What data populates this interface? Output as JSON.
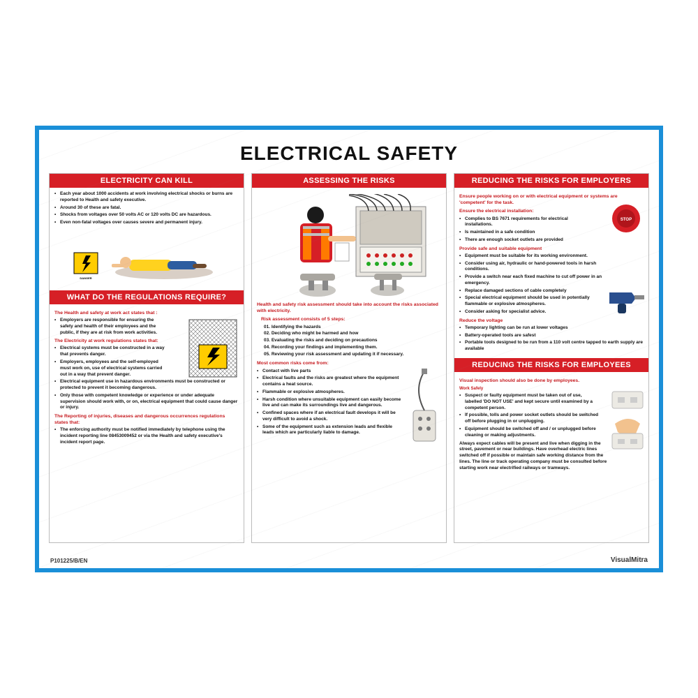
{
  "title": "ELECTRICAL SAFETY",
  "border_color": "#1a8fd8",
  "header_bg": "#d61f26",
  "accent_text": "#c61a1f",
  "footer": {
    "code": "P101225/B/EN",
    "brand": "VisualMitra"
  },
  "col1": {
    "s1": {
      "title": "ELECTRICITY CAN KILL",
      "bullets": [
        "Each year about 1000 accidents at work involving electrical shocks or burns are reported to Health and safety executive.",
        "Around 30 of these are fatal.",
        "Shocks from voltages over 50 volts AC or 120 volts DC are hazardous.",
        "Even non-fatal voltages over causes severe and permanent injury."
      ]
    },
    "s2": {
      "title": "WHAT DO THE REGULATIONS REQUIRE?",
      "sub1": "The Health and safety at work act states that :",
      "b1": [
        "Employers are responsible for ensuring the safety and health of their employees and the public, if they are at risk from work activities."
      ],
      "sub2": "The Electricity at work regulations states that:",
      "b2": [
        "Electrical systems must be constructed in a way that prevents danger.",
        "Employers, employees and the self-employed must work on, use of electrical systems carried out in a way that prevent danger.",
        "Electrical equipment use in hazardous environments must be constructed or protected to prevent it becoming dangerous.",
        "Only those with competent knowledge or experience or under adequate supervision should work with, or on, electrical equipment that could cause danger or injury."
      ],
      "sub3": "The Reporting of injuries, diseases and dangerous occurrences regulations states that:",
      "b3": [
        "The enforcing authority must be notified immediately by telephone using the incident reporting line 08453009452 or via the Health and safety executive's incident report page."
      ]
    }
  },
  "col2": {
    "title": "ASSESSING THE RISKS",
    "intro": "Health and safety risk assessment should take into account the risks associated with electricity.",
    "sub1": "Risk assessment consists of 5 steps:",
    "steps": [
      "01. Identifying the hazards",
      "02. Deciding who might be harmed and how",
      "03. Evaluating the risks and deciding on precautions",
      "04. Recording your findings and implementing them.",
      "05. Reviewing your risk assessment and updating it if necessary."
    ],
    "sub2": "Most common risks come from:",
    "risks": [
      "Contact with live parts",
      "Electrical faults and the risks are greatest where the equipment contains a heat source.",
      "Flammable or explosive atmospheres.",
      "Harsh condition where unsuitable equipment can easily become live and can make its surroundings live and dangerous.",
      "Confined spaces where if an electrical fault develops it will be very difficult to avoid a shock.",
      "Some of the equipment such as extension leads and flexible leads which are particularly liable to damage."
    ]
  },
  "col3": {
    "s1": {
      "title": "REDUCING THE RISKS FOR EMPLOYERS",
      "intro": "Ensure people working on or with electrical equipment or systems are 'competent' for the task.",
      "sub1": "Ensure the electrical installation:",
      "b1": [
        "Complies to BS 7671 requirements for electrical installations.",
        "Is maintained in a safe condition",
        "There are enough socket outlets are provided"
      ],
      "sub2": "Provide safe and suitable equipment",
      "b2": [
        "Equipment must be suitable for its working environment.",
        "Consider using air, hydraulic or hand-powered tools in harsh conditions.",
        "Provide a switch near each fixed machine to cut off power in an emergency.",
        "Replace damaged sections of cable completely",
        "Special electrical equipment should be used in potentially flammable or explosive atmospheres.",
        "Consider asking for specialist advice."
      ],
      "sub3": "Reduce the voltage",
      "b3": [
        "Temporary lighting can be run at lower voltages",
        "Battery-operated tools are safest",
        "Portable tools designed to be run from a 110 volt centre tapped to earth supply are available"
      ]
    },
    "s2": {
      "title": "REDUCING THE RISKS FOR EMPLOYEES",
      "sub1": "Visual inspection should also be done by employees.",
      "sub2": "Work Safely",
      "b1": [
        "Suspect or faulty equipment must be taken out of use, labelled 'DO NOT USE' and kept secure until examined by a competent person.",
        "If possible, tolls and power socket outlets should be switched off before plugging in or unplugging.",
        "Equipment should be switched off and / or unplugged before cleaning or making adjustments."
      ],
      "tail": "Always expect cables will be present and live when digging in the street, pavement or near buildings. Have overhead electric lines switched off if possible or maintain safe working distance from the lines. The line or track operating company must be consulted before starting work near electrified railways or tramways."
    }
  }
}
